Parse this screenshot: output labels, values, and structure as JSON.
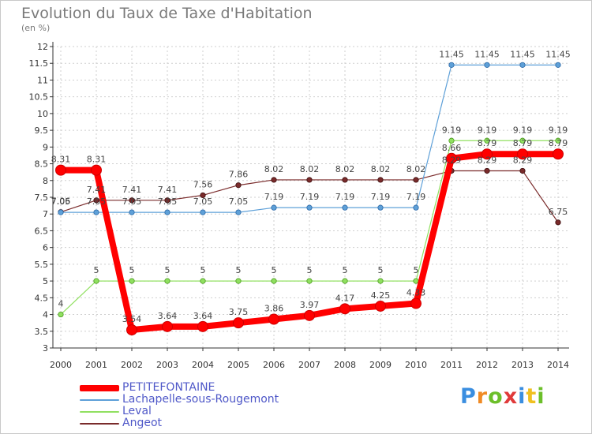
{
  "title": "Evolution du Taux de Taxe d'Habitation",
  "unit": "(en %)",
  "colors": {
    "axis": "#333333",
    "grid": "#cfcfcf",
    "value_label": "#444444",
    "legend_text": "#4f58c8"
  },
  "logo": {
    "text": "Proxiti",
    "letter_colors": [
      "#3a8ee0",
      "#f08a24",
      "#6cbf2a",
      "#e03a3a",
      "#3a8ee0",
      "#f0c020",
      "#6cbf2a"
    ]
  },
  "chart_data": {
    "type": "line",
    "x": [
      "2000",
      "2001",
      "2002",
      "2003",
      "2004",
      "2005",
      "2006",
      "2007",
      "2008",
      "2009",
      "2010",
      "2011",
      "2012",
      "2013",
      "2014"
    ],
    "ylim": [
      3,
      12
    ],
    "yticks": [
      "3",
      "3.5",
      "4",
      "4.5",
      "5",
      "5.5",
      "6",
      "6.5",
      "7",
      "7.5",
      "8",
      "8.5",
      "9",
      "9.5",
      "10",
      "10.5",
      "11",
      "11.5",
      "12"
    ],
    "grid": true,
    "legend_position": "bottom-left",
    "series": [
      {
        "name": "PETITEFONTAINE",
        "color": "#ff0000",
        "values": [
          8.31,
          8.31,
          3.54,
          3.64,
          3.64,
          3.75,
          3.86,
          3.97,
          4.17,
          4.25,
          4.33,
          8.66,
          8.79,
          8.79,
          8.79
        ],
        "labels": [
          "8.31",
          "8.31",
          "3.54",
          "3.64",
          "3.64",
          "3.75",
          "3.86",
          "3.97",
          "4.17",
          "4.25",
          "4.33",
          "8.66",
          "8.79",
          "8.79",
          "8.79"
        ]
      },
      {
        "name": "Lachapelle-sous-Rougemont",
        "color": "#5ea0d8",
        "values": [
          7.05,
          7.05,
          7.05,
          7.05,
          7.05,
          7.05,
          7.19,
          7.19,
          7.19,
          7.19,
          7.19,
          11.45,
          11.45,
          11.45,
          11.45
        ],
        "labels": [
          "7.05",
          "7.05",
          "7.05",
          "7.05",
          "7.05",
          "7.05",
          "7.19",
          "7.19",
          "7.19",
          "7.19",
          "7.19",
          "11.45",
          "11.45",
          "11.45",
          "11.45"
        ]
      },
      {
        "name": "Leval",
        "color": "#90e060",
        "values": [
          4,
          5,
          5,
          5,
          5,
          5,
          5,
          5,
          5,
          5,
          5,
          9.19,
          9.19,
          9.19,
          9.19
        ],
        "labels": [
          "4",
          "5",
          "5",
          "5",
          "5",
          "5",
          "5",
          "5",
          "5",
          "5",
          "5",
          "9.19",
          "9.19",
          "9.19",
          "9.19"
        ]
      },
      {
        "name": "Angeot",
        "color": "#7a2b2b",
        "values": [
          7.06,
          7.41,
          7.41,
          7.41,
          7.56,
          7.86,
          8.02,
          8.02,
          8.02,
          8.02,
          8.02,
          8.29,
          8.29,
          8.29,
          6.75
        ],
        "labels": [
          "7.06",
          "7.41",
          "7.41",
          "7.41",
          "7.56",
          "7.86",
          "8.02",
          "8.02",
          "8.02",
          "8.02",
          "8.02",
          "8.29",
          "8.29",
          "8.29",
          "6.75"
        ]
      }
    ]
  }
}
